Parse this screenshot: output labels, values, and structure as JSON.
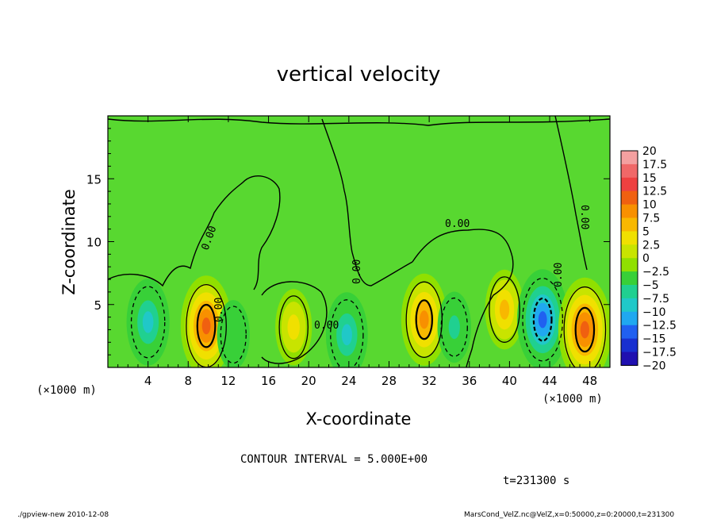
{
  "chart_data": {
    "type": "heatmap",
    "title": "vertical velocity",
    "xlabel": "X-coordinate",
    "ylabel": "Z-coordinate",
    "x_unit": "(×1000 m)",
    "y_unit": "(×1000 m)",
    "xlim": [
      0,
      50
    ],
    "ylim": [
      0,
      20
    ],
    "x_ticks": [
      4,
      8,
      12,
      16,
      20,
      24,
      28,
      32,
      36,
      40,
      44,
      48
    ],
    "y_ticks": [
      5,
      10,
      15
    ],
    "colorbar": {
      "levels": [
        "20",
        "17.5",
        "15",
        "12.5",
        "10",
        "7.5",
        "5",
        "2.5",
        "0",
        "-2.5",
        "-5",
        "-7.5",
        "-10",
        "-12.5",
        "-15",
        "-17.5",
        "-20"
      ],
      "colors": [
        "#f4a0a0",
        "#f06868",
        "#ee4040",
        "#f06010",
        "#f89000",
        "#f8b800",
        "#f0e000",
        "#c8e400",
        "#90e000",
        "#38d038",
        "#20d090",
        "#20c8c8",
        "#20a8f0",
        "#2060f0",
        "#1830d0",
        "#2010b0",
        "#7010c0"
      ]
    },
    "contour_interval_text": "CONTOUR INTERVAL = 5.000E+00",
    "contour_label": "0.00",
    "time_text": "t=231300 s",
    "cells": [
      {
        "x": 4.0,
        "z": 3.6,
        "w": -8.5
      },
      {
        "x": 9.8,
        "z": 3.3,
        "w": 12.5
      },
      {
        "x": 12.5,
        "z": 2.6,
        "w": -3.5
      },
      {
        "x": 18.5,
        "z": 3.2,
        "w": 5.5
      },
      {
        "x": 23.8,
        "z": 2.6,
        "w": -8.0
      },
      {
        "x": 31.5,
        "z": 3.8,
        "w": 10.0
      },
      {
        "x": 34.5,
        "z": 3.2,
        "w": -4.0
      },
      {
        "x": 39.5,
        "z": 4.6,
        "w": 6.5
      },
      {
        "x": 43.3,
        "z": 3.8,
        "w": -12.5
      },
      {
        "x": 47.5,
        "z": 3.0,
        "w": 13.5
      }
    ]
  },
  "footer": {
    "left": "./gpview-new  2010-12-08",
    "right": "MarsCond_VelZ.nc@VelZ,x=0:50000,z=0:20000,t=231300"
  }
}
